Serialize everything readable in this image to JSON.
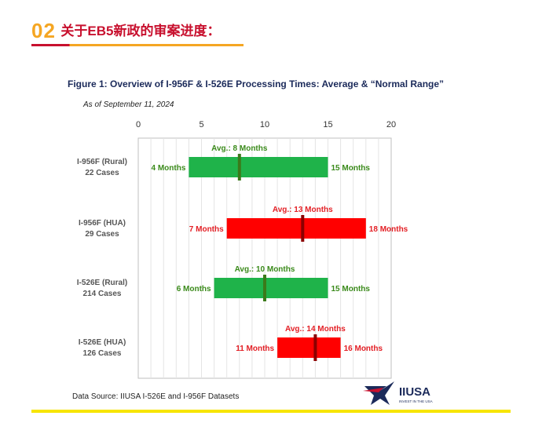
{
  "header": {
    "number": "02",
    "title": "关于EB5新政的审案进度："
  },
  "figure": {
    "title": "Figure 1: Overview of I-956F & I-526E Processing Times: Average & “Normal Range”",
    "subtitle": "As of September 11, 2024",
    "source": "Data Source: IIUSA I-526E and I-956F Datasets"
  },
  "logo": {
    "text": "IIUSA",
    "tagline": "INVEST IN THE USA",
    "icon": "star-logo-icon"
  },
  "colors": {
    "green": "#1fb34a",
    "green_marker": "#3b7a1a",
    "red": "#ff0000",
    "red_marker": "#8b0000",
    "green_text": "#3a8a1a",
    "red_text": "#e31e24"
  },
  "chart_data": {
    "type": "range-bar",
    "xlim": [
      0,
      20
    ],
    "xticks": [
      0,
      5,
      10,
      15,
      20
    ],
    "unit_label": "Months",
    "rows": [
      {
        "label1": "I-956F (Rural)",
        "label2": "22 Cases",
        "min": 4,
        "max": 15,
        "avg": 8,
        "min_label": "4 Months",
        "max_label": "15 Months",
        "avg_label": "Avg.: 8 Months",
        "color": "green"
      },
      {
        "label1": "I-956F (HUA)",
        "label2": "29 Cases",
        "min": 7,
        "max": 18,
        "avg": 13,
        "min_label": "7 Months",
        "max_label": "18 Months",
        "avg_label": "Avg.: 13 Months",
        "color": "red"
      },
      {
        "label1": "I-526E (Rural)",
        "label2": "214 Cases",
        "min": 6,
        "max": 15,
        "avg": 10,
        "min_label": "6 Months",
        "max_label": "15 Months",
        "avg_label": "Avg.: 10 Months",
        "color": "green"
      },
      {
        "label1": "I-526E (HUA)",
        "label2": "126 Cases",
        "min": 11,
        "max": 16,
        "avg": 14,
        "min_label": "11 Months",
        "max_label": "16 Months",
        "avg_label": "Avg.: 14 Months",
        "color": "red"
      }
    ]
  }
}
